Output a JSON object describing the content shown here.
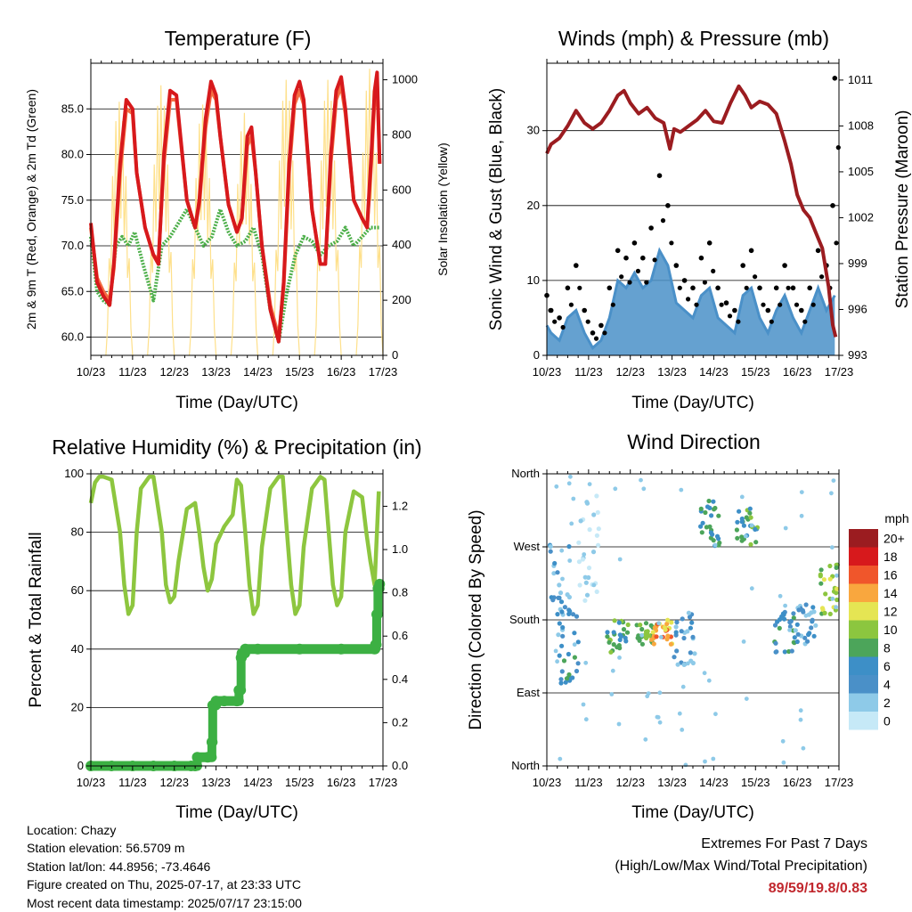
{
  "colors": {
    "temp2m": "#d7191c",
    "temp9m": "#f46d43",
    "dewpoint": "#4daf4a",
    "solar": "#fee08b",
    "wind": "#4a90c8",
    "gust": "#000000",
    "pressure": "#9b1c20",
    "humidity": "#8dc63f",
    "precip": "#3cb043",
    "highlight": "#c1272d"
  },
  "common": {
    "xlabel": "Time (Day/UTC)",
    "x_ticks": [
      "10/23",
      "11/23",
      "12/23",
      "13/23",
      "14/23",
      "15/23",
      "16/23",
      "17/23"
    ]
  },
  "chart_data": [
    {
      "id": "temperature",
      "type": "line",
      "title": "Temperature (F)",
      "ylabel": "2m & 9m T (Red, Orange) & 2m Td (Green)",
      "y2label": "Solar Insolation (Yellow)",
      "ylim": [
        58,
        90
      ],
      "y_ticks": [
        "60.0",
        "65.0",
        "70.0",
        "75.0",
        "80.0",
        "85.0"
      ],
      "y2lim": [
        0,
        1060
      ],
      "y2_ticks": [
        "0",
        "200",
        "400",
        "600",
        "800",
        "1000"
      ],
      "grid": true,
      "series": [
        {
          "key": "temp2m",
          "x_days": [
            0,
            0.15,
            0.3,
            0.45,
            0.55,
            0.7,
            0.85,
            1.0,
            1.1,
            1.3,
            1.5,
            1.62,
            1.75,
            1.9,
            2.05,
            2.3,
            2.5,
            2.6,
            2.75,
            2.88,
            3.0,
            3.1,
            3.3,
            3.5,
            3.62,
            3.75,
            3.85,
            3.95,
            4.1,
            4.3,
            4.5,
            4.62,
            4.75,
            4.88,
            5.0,
            5.1,
            5.3,
            5.5,
            5.62,
            5.75,
            5.88,
            6.0,
            6.1,
            6.3,
            6.5,
            6.62,
            6.72,
            6.8,
            6.86,
            6.92
          ],
          "values": [
            72.5,
            66,
            64.5,
            63.5,
            68,
            79,
            86,
            85,
            78,
            72,
            69,
            68,
            80,
            87,
            86.5,
            75,
            72,
            75,
            84,
            88,
            86.5,
            82,
            74.5,
            71.5,
            73,
            82,
            83,
            78,
            70,
            63,
            59.5,
            66,
            79,
            86.5,
            88,
            86,
            74,
            68,
            68,
            80,
            87,
            88.5,
            85,
            75,
            73,
            72,
            80,
            87,
            89,
            79
          ]
        },
        {
          "key": "temp9m",
          "x_days": [
            0,
            0.15,
            0.3,
            0.45,
            0.55,
            0.7,
            0.85,
            1.0,
            1.1,
            1.3,
            1.5,
            1.62,
            1.75,
            1.9,
            2.05,
            2.3,
            2.5,
            2.6,
            2.75,
            2.88,
            3.0,
            3.1,
            3.3,
            3.5,
            3.62,
            3.75,
            3.85,
            3.95,
            4.1,
            4.3,
            4.5,
            4.62,
            4.75,
            4.88,
            5.0,
            5.1,
            5.3,
            5.5,
            5.62,
            5.75,
            5.88,
            6.0,
            6.1,
            6.3,
            6.5,
            6.62,
            6.72,
            6.8,
            6.86,
            6.92
          ],
          "values": [
            72,
            66.5,
            65,
            64,
            67.5,
            78,
            85,
            84.5,
            78,
            72,
            69,
            68.5,
            79,
            86,
            86,
            75,
            72,
            74.5,
            83,
            87,
            86,
            82,
            74.5,
            71.5,
            73,
            81,
            82,
            78,
            70,
            63.5,
            60,
            65.5,
            78,
            85.5,
            87,
            85.5,
            74,
            68,
            68,
            79,
            86,
            87.5,
            84.5,
            75,
            73,
            72,
            79,
            86,
            88,
            79
          ]
        },
        {
          "key": "dewpoint",
          "x_days": [
            0,
            0.15,
            0.3,
            0.45,
            0.6,
            0.75,
            0.9,
            1.05,
            1.25,
            1.5,
            1.7,
            1.9,
            2.1,
            2.3,
            2.5,
            2.7,
            2.9,
            3.1,
            3.3,
            3.5,
            3.7,
            3.9,
            4.1,
            4.3,
            4.5,
            4.7,
            4.9,
            5.1,
            5.3,
            5.5,
            5.7,
            5.9,
            6.1,
            6.3,
            6.5,
            6.7,
            6.92
          ],
          "values": [
            71,
            65,
            64,
            63.5,
            70,
            71,
            70,
            71.5,
            68,
            64,
            70,
            71,
            72.5,
            74,
            72,
            70,
            71,
            74,
            71.5,
            70,
            70.5,
            72,
            69,
            63,
            59.5,
            65,
            69,
            71,
            70.5,
            69,
            70,
            70.5,
            72,
            70,
            71,
            72,
            72
          ]
        },
        {
          "key": "solar",
          "peaks_x_days": [
            0.68,
            1.68,
            2.68,
            3.68,
            4.68,
            5.68,
            6.68
          ],
          "peak_values": [
            920,
            980,
            910,
            880,
            1000,
            1000,
            1040
          ]
        }
      ]
    },
    {
      "id": "winds",
      "type": "line",
      "title": "Winds (mph) & Pressure (mb)",
      "ylabel": "Sonic Wind & Gust (Blue, Black)",
      "y2label": "Station Pressure (Maroon)",
      "ylim": [
        0,
        39
      ],
      "y_ticks": [
        "0",
        "10",
        "20",
        "30"
      ],
      "y2lim": [
        993,
        1012.1
      ],
      "y2_ticks": [
        "993",
        "996",
        "999",
        "1002",
        "1005",
        "1008",
        "1011"
      ],
      "grid": true,
      "series": [
        {
          "key": "pressure",
          "x_days": [
            0,
            0.1,
            0.3,
            0.5,
            0.7,
            0.9,
            1.1,
            1.3,
            1.5,
            1.7,
            1.85,
            2.0,
            2.2,
            2.4,
            2.6,
            2.8,
            2.95,
            3.05,
            3.2,
            3.4,
            3.6,
            3.8,
            4.0,
            4.2,
            4.4,
            4.6,
            4.75,
            4.9,
            5.1,
            5.3,
            5.5,
            5.7,
            5.85,
            6.0,
            6.15,
            6.3,
            6.45,
            6.6,
            6.75,
            6.85,
            6.92
          ],
          "values": [
            1006.2,
            1006.8,
            1007.2,
            1008,
            1009,
            1008.2,
            1007.8,
            1008.2,
            1009,
            1010,
            1010.3,
            1009.5,
            1008.8,
            1009.2,
            1008.5,
            1008.2,
            1006.5,
            1007.8,
            1007.6,
            1008,
            1008.4,
            1009,
            1008.3,
            1008.2,
            1009.5,
            1010.6,
            1010,
            1009.2,
            1009.6,
            1009.4,
            1008.8,
            1007,
            1005.5,
            1003.5,
            1002.5,
            1002,
            1001,
            1000,
            997.5,
            995,
            994.2
          ]
        },
        {
          "key": "wind",
          "x_days": [
            0,
            0.1,
            0.3,
            0.5,
            0.7,
            0.9,
            1.1,
            1.3,
            1.5,
            1.7,
            1.9,
            2.1,
            2.3,
            2.5,
            2.7,
            2.9,
            3.1,
            3.3,
            3.5,
            3.7,
            3.9,
            4.1,
            4.3,
            4.5,
            4.7,
            4.9,
            5.1,
            5.3,
            5.5,
            5.7,
            5.9,
            6.1,
            6.3,
            6.5,
            6.7,
            6.9
          ],
          "values": [
            4,
            3,
            2,
            5,
            6,
            3,
            1,
            2,
            5,
            10,
            9,
            11,
            9,
            10,
            14,
            12,
            7,
            6,
            5,
            8,
            9,
            5,
            4,
            3,
            8,
            9,
            5,
            3,
            6,
            8,
            5,
            3,
            6,
            9,
            6,
            8
          ]
        },
        {
          "key": "gust",
          "x_days": [
            0,
            0.1,
            0.3,
            0.5,
            0.7,
            0.9,
            1.1,
            1.3,
            1.5,
            1.7,
            1.9,
            2.1,
            2.3,
            2.5,
            2.7,
            2.9,
            3.1,
            3.3,
            3.5,
            3.7,
            3.9,
            4.1,
            4.3,
            4.5,
            4.7,
            4.9,
            5.1,
            5.3,
            5.5,
            5.7,
            5.9,
            6.1,
            6.3,
            6.5,
            6.7,
            6.85,
            6.9
          ],
          "values": [
            8,
            6,
            5,
            9,
            12,
            6,
            3,
            4,
            9,
            14,
            13,
            15,
            13,
            17,
            24,
            20,
            12,
            10,
            9,
            13,
            15,
            9,
            7,
            6,
            12,
            14,
            9,
            6,
            9,
            12,
            9,
            6,
            9,
            14,
            12,
            20,
            37
          ]
        }
      ]
    },
    {
      "id": "humidity",
      "type": "line",
      "title": "Relative Humidity (%) & Precipitation (in)",
      "ylabel": "Percent & Total Rainfall",
      "ylim": [
        0,
        100
      ],
      "y_ticks": [
        "0",
        "20",
        "40",
        "60",
        "80",
        "100"
      ],
      "y2lim": [
        0,
        1.35
      ],
      "y2_ticks": [
        "0.0",
        "0.2",
        "0.4",
        "0.6",
        "0.8",
        "1.0",
        "1.2"
      ],
      "grid": true,
      "series": [
        {
          "key": "humidity",
          "x_days": [
            0,
            0.1,
            0.2,
            0.3,
            0.5,
            0.7,
            0.8,
            0.9,
            1.0,
            1.1,
            1.2,
            1.4,
            1.5,
            1.7,
            1.8,
            1.9,
            2.0,
            2.1,
            2.3,
            2.5,
            2.6,
            2.7,
            2.8,
            2.9,
            3.0,
            3.2,
            3.4,
            3.5,
            3.6,
            3.7,
            3.8,
            3.9,
            4.0,
            4.1,
            4.3,
            4.5,
            4.6,
            4.7,
            4.8,
            4.9,
            5.0,
            5.1,
            5.3,
            5.5,
            5.6,
            5.7,
            5.8,
            5.9,
            6.0,
            6.1,
            6.3,
            6.5,
            6.6,
            6.7,
            6.8,
            6.9
          ],
          "values": [
            90,
            97,
            99,
            99,
            98,
            80,
            62,
            52,
            55,
            80,
            95,
            99,
            99,
            80,
            62,
            56,
            58,
            70,
            88,
            90,
            80,
            68,
            60,
            64,
            76,
            82,
            86,
            98,
            96,
            80,
            62,
            52,
            55,
            75,
            95,
            99,
            99,
            80,
            62,
            52,
            55,
            75,
            95,
            99,
            98,
            80,
            62,
            55,
            58,
            80,
            94,
            92,
            80,
            70,
            62,
            94
          ]
        },
        {
          "key": "precip",
          "x_days": [
            0,
            0.5,
            1.0,
            1.5,
            2.0,
            2.4,
            2.5,
            2.55,
            2.8,
            2.9,
            2.92,
            3.0,
            3.2,
            3.5,
            3.55,
            3.6,
            3.62,
            3.7,
            4.0,
            5.0,
            6.0,
            6.8,
            6.82,
            6.85,
            6.88,
            6.92
          ],
          "values": [
            0,
            0,
            0,
            0,
            0,
            0,
            0,
            0.04,
            0.04,
            0.11,
            0.28,
            0.3,
            0.3,
            0.3,
            0.35,
            0.5,
            0.52,
            0.54,
            0.54,
            0.54,
            0.54,
            0.54,
            0.56,
            0.7,
            0.82,
            0.84
          ]
        }
      ]
    },
    {
      "id": "direction",
      "type": "scatter",
      "title": "Wind Direction",
      "ylabel": "Direction (Colored By Speed)",
      "y_ticks": [
        "North",
        "East",
        "South",
        "West",
        "North"
      ],
      "ylim": [
        0,
        360
      ],
      "legend": {
        "title": "mph",
        "labels": [
          "0",
          "2",
          "4",
          "6",
          "8",
          "10",
          "12",
          "14",
          "16",
          "18",
          "20+"
        ],
        "colors": [
          "#c6e9f7",
          "#8ecae8",
          "#4a90c8",
          "#3d8fc7",
          "#4ca55a",
          "#8cc63f",
          "#e5e553",
          "#f9a73e",
          "#f0562b",
          "#d7191c",
          "#9b1c20"
        ]
      },
      "clusters": [
        {
          "x_day": 0.3,
          "dir_min": 150,
          "dir_max": 280,
          "speed": 4
        },
        {
          "x_day": 0.55,
          "dir_min": 100,
          "dir_max": 200,
          "speed": 6
        },
        {
          "x_day": 1.0,
          "dir_min": 200,
          "dir_max": 340,
          "speed": 1
        },
        {
          "x_day": 1.7,
          "dir_min": 140,
          "dir_max": 180,
          "speed": 8
        },
        {
          "x_day": 2.4,
          "dir_min": 150,
          "dir_max": 180,
          "speed": 9
        },
        {
          "x_day": 2.75,
          "dir_min": 150,
          "dir_max": 180,
          "speed": 14
        },
        {
          "x_day": 3.3,
          "dir_min": 120,
          "dir_max": 190,
          "speed": 4
        },
        {
          "x_day": 3.9,
          "dir_min": 270,
          "dir_max": 330,
          "speed": 7
        },
        {
          "x_day": 4.8,
          "dir_min": 270,
          "dir_max": 320,
          "speed": 8
        },
        {
          "x_day": 5.7,
          "dir_min": 140,
          "dir_max": 190,
          "speed": 6
        },
        {
          "x_day": 6.2,
          "dir_min": 150,
          "dir_max": 200,
          "speed": 4
        },
        {
          "x_day": 6.8,
          "dir_min": 180,
          "dir_max": 250,
          "speed": 10
        }
      ]
    }
  ],
  "info": {
    "location": "Location: Chazy",
    "elevation": "Station elevation: 56.5709 m",
    "latlon": "Station lat/lon: 44.8956; -73.4646",
    "created": "Figure created on Thu, 2025-07-17, at 23:33 UTC",
    "recent": "Most recent data timestamp: 2025/07/17 23:15:00"
  },
  "extremes": {
    "title": "Extremes For Past 7 Days",
    "subtitle": "(High/Low/Max Wind/Total Precipitation)",
    "values": "89/59/19.8/0.83"
  }
}
